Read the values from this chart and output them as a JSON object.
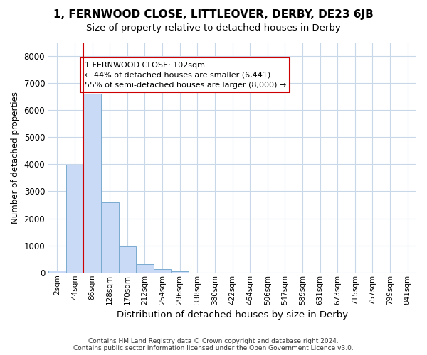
{
  "title1": "1, FERNWOOD CLOSE, LITTLEOVER, DERBY, DE23 6JB",
  "title2": "Size of property relative to detached houses in Derby",
  "xlabel": "Distribution of detached houses by size in Derby",
  "ylabel": "Number of detached properties",
  "footer": "Contains HM Land Registry data © Crown copyright and database right 2024.\nContains public sector information licensed under the Open Government Licence v3.0.",
  "bin_labels": [
    "2sqm",
    "44sqm",
    "86sqm",
    "128sqm",
    "170sqm",
    "212sqm",
    "254sqm",
    "296sqm",
    "338sqm",
    "380sqm",
    "422sqm",
    "464sqm",
    "506sqm",
    "547sqm",
    "589sqm",
    "631sqm",
    "673sqm",
    "715sqm",
    "757sqm",
    "799sqm",
    "841sqm"
  ],
  "bar_heights": [
    60,
    3980,
    6600,
    2600,
    960,
    320,
    120,
    50,
    0,
    0,
    0,
    0,
    0,
    0,
    0,
    0,
    0,
    0,
    0,
    0,
    0
  ],
  "bar_color": "#c8daf5",
  "bar_edge_color": "#7aaad0",
  "vline_color": "#cc0000",
  "annotation_text": "1 FERNWOOD CLOSE: 102sqm\n← 44% of detached houses are smaller (6,441)\n55% of semi-detached houses are larger (8,000) →",
  "annotation_box_color": "#ffffff",
  "annotation_box_edge_color": "#cc0000",
  "ylim": [
    0,
    8500
  ],
  "yticks": [
    0,
    1000,
    2000,
    3000,
    4000,
    5000,
    6000,
    7000,
    8000
  ],
  "grid_color": "#c8d8e8",
  "background_color": "#ffffff"
}
